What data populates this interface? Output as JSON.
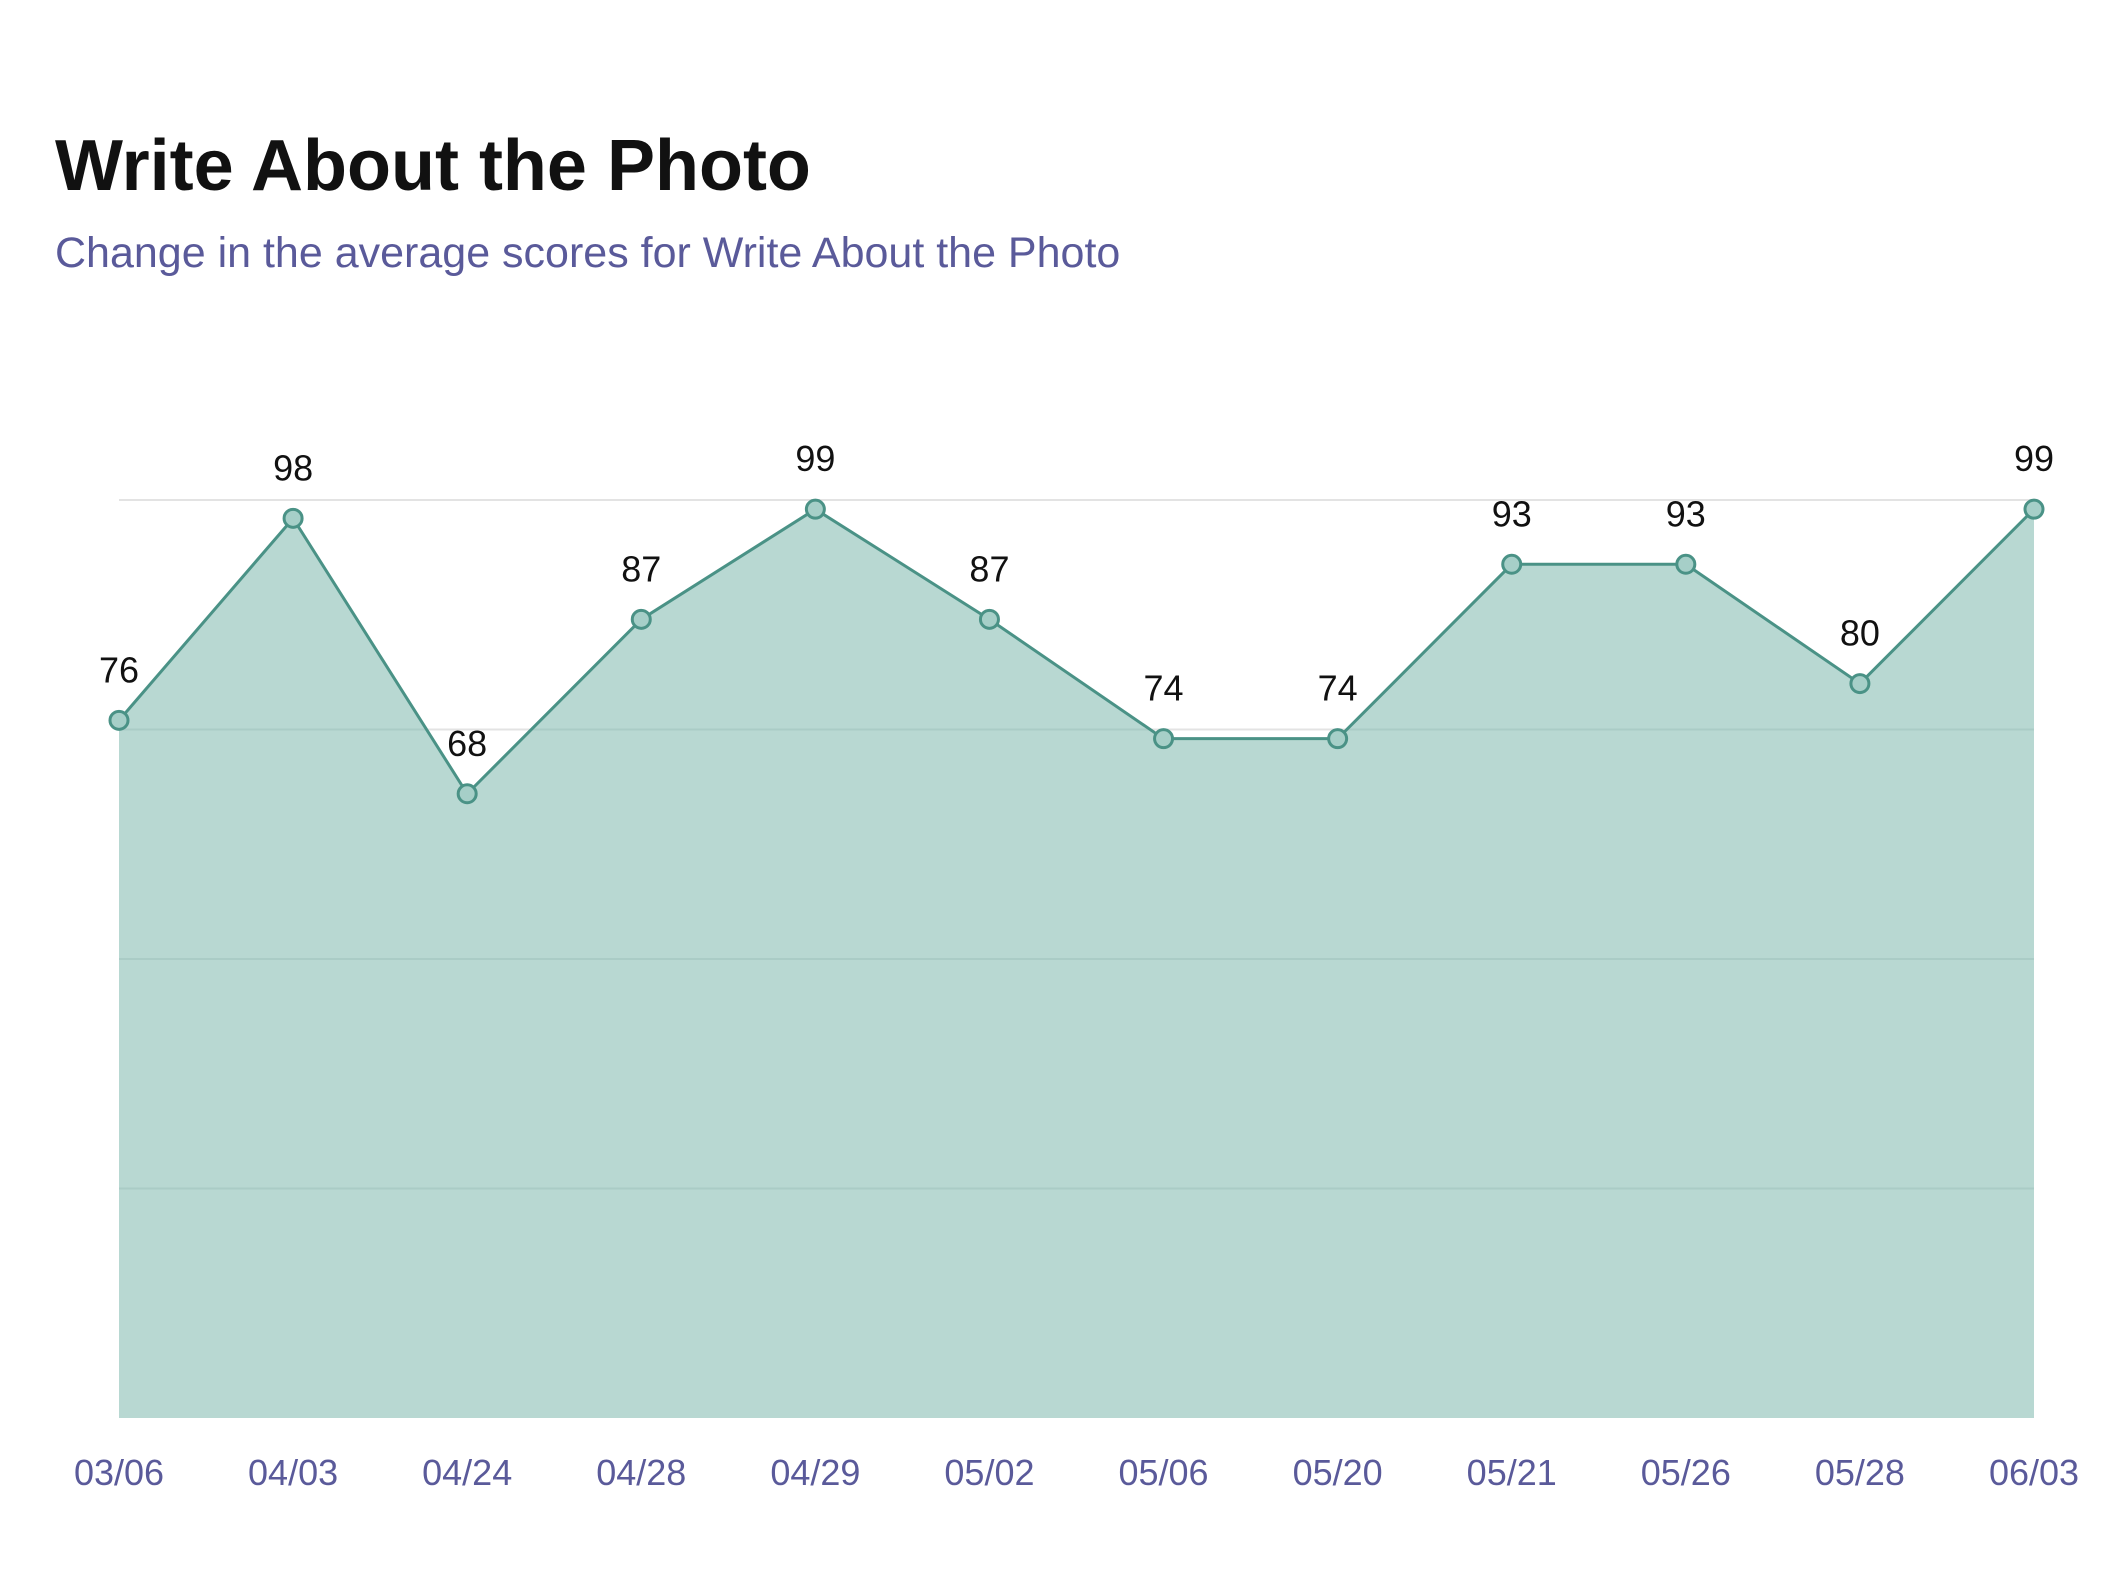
{
  "header": {
    "title": "Write About the Photo",
    "subtitle": "Change in the average scores for Write About the Photo"
  },
  "chart_data": {
    "type": "area",
    "title": "Write About the Photo",
    "subtitle": "Change in the average scores for Write About the Photo",
    "categories": [
      "03/06",
      "04/03",
      "04/24",
      "04/28",
      "04/29",
      "05/02",
      "05/06",
      "05/20",
      "05/21",
      "05/26",
      "05/28",
      "06/03"
    ],
    "series": [
      {
        "values": [
          76,
          98,
          68,
          87,
          99,
          87,
          74,
          74,
          93,
          93,
          80,
          99
        ]
      }
    ],
    "xlabel": "",
    "ylabel": "",
    "ylim": [
      0,
      100
    ],
    "grid": true,
    "legend": "none",
    "colors": {
      "fill": "#b8d8d2",
      "line": "#4a9286",
      "point_fill": "#a6cfc8",
      "gridline": "#e3e3e3",
      "tick_label": "#5a5a9a",
      "data_label": "#111111"
    }
  }
}
